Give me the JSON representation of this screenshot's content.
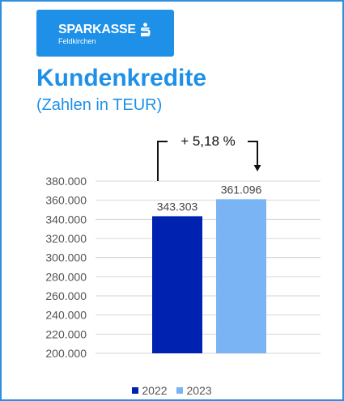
{
  "logo": {
    "name": "SPARKASSE",
    "location": "Feldkirchen",
    "color": "#1e90e8"
  },
  "title": "Kundenkredite",
  "subtitle": "(Zahlen in TEUR)",
  "annotation": "+ 5,18 %",
  "colors": {
    "title": "#1e90e8",
    "border": "#2f8fdf",
    "bar_2022": "#0022b0",
    "bar_2023": "#7ab4f5"
  },
  "chart_data": {
    "type": "bar",
    "categories": [
      "2022",
      "2023"
    ],
    "values": [
      343303,
      361096
    ],
    "value_labels": [
      "343.303",
      "361.096"
    ],
    "ylim": [
      200000,
      380000
    ],
    "yticks": [
      200000,
      220000,
      240000,
      260000,
      280000,
      300000,
      320000,
      340000,
      360000,
      380000
    ],
    "ytick_labels": [
      "200.000",
      "220.000",
      "240.000",
      "260.000",
      "280.000",
      "300.000",
      "320.000",
      "340.000",
      "360.000",
      "380.000"
    ],
    "grid": true,
    "legend": "bottom",
    "legend_entries": [
      "2022",
      "2023"
    ]
  }
}
